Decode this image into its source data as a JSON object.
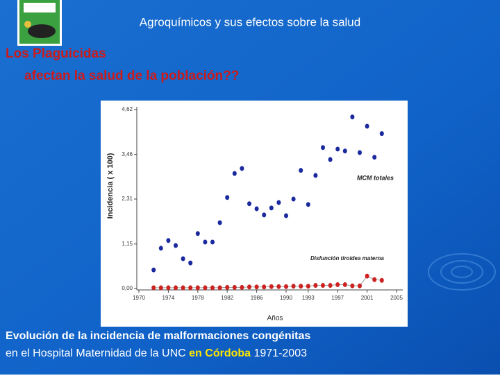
{
  "slide": {
    "title": "Agroquímicos y sus efectos sobre la salud",
    "heading": [
      "Los Plaguicidas",
      "afectan la salud de la población??"
    ],
    "caption": {
      "line1": "Evolución de la incidencia de malformaciones congénitas",
      "line2": [
        "en el Hospital Maternidad de la UNC",
        "en Córdoba",
        "1971-2003"
      ]
    }
  },
  "chart_data": {
    "type": "scatter",
    "ylabel": "Incidencia ( x 100)",
    "xlabel": "Años",
    "xlim": [
      1970,
      2005
    ],
    "xticks": [
      1970,
      1974,
      1978,
      1982,
      1986,
      1990,
      1993,
      1997,
      2001,
      2005
    ],
    "ylim": [
      0,
      4.62
    ],
    "yticks": [
      {
        "value": 0,
        "label": "0,00"
      },
      {
        "value": 1.15,
        "label": "1,15"
      },
      {
        "value": 2.31,
        "label": "2,31"
      },
      {
        "value": 3.46,
        "label": "3,46"
      },
      {
        "value": 4.62,
        "label": "4,62"
      }
    ],
    "x": [
      1972,
      1973,
      1974,
      1975,
      1976,
      1977,
      1978,
      1979,
      1980,
      1981,
      1982,
      1983,
      1984,
      1985,
      1986,
      1987,
      1988,
      1989,
      1990,
      1991,
      1992,
      1993,
      1994,
      1995,
      1996,
      1997,
      1998,
      1999,
      2000,
      2001,
      2002,
      2003
    ],
    "series": [
      {
        "name": "MCM totales",
        "color": "#1a2a9e",
        "values": [
          0.48,
          1.04,
          1.24,
          1.11,
          0.77,
          0.66,
          1.42,
          1.2,
          1.2,
          1.7,
          2.35,
          2.97,
          3.1,
          2.19,
          2.06,
          1.9,
          2.08,
          2.22,
          1.88,
          2.31,
          3.05,
          2.17,
          2.92,
          3.64,
          3.33,
          3.6,
          3.55,
          4.43,
          3.51,
          4.19,
          3.39,
          4.0
        ]
      },
      {
        "name": "Disfunción tiroidea materna",
        "color": "#cc2222",
        "values": [
          0.02,
          0.02,
          0.02,
          0.02,
          0.02,
          0.02,
          0.02,
          0.02,
          0.02,
          0.02,
          0.03,
          0.03,
          0.03,
          0.04,
          0.04,
          0.04,
          0.05,
          0.05,
          0.05,
          0.06,
          0.06,
          0.06,
          0.08,
          0.08,
          0.08,
          0.1,
          0.1,
          0.07,
          0.07,
          0.32,
          0.23,
          0.21
        ]
      }
    ]
  }
}
